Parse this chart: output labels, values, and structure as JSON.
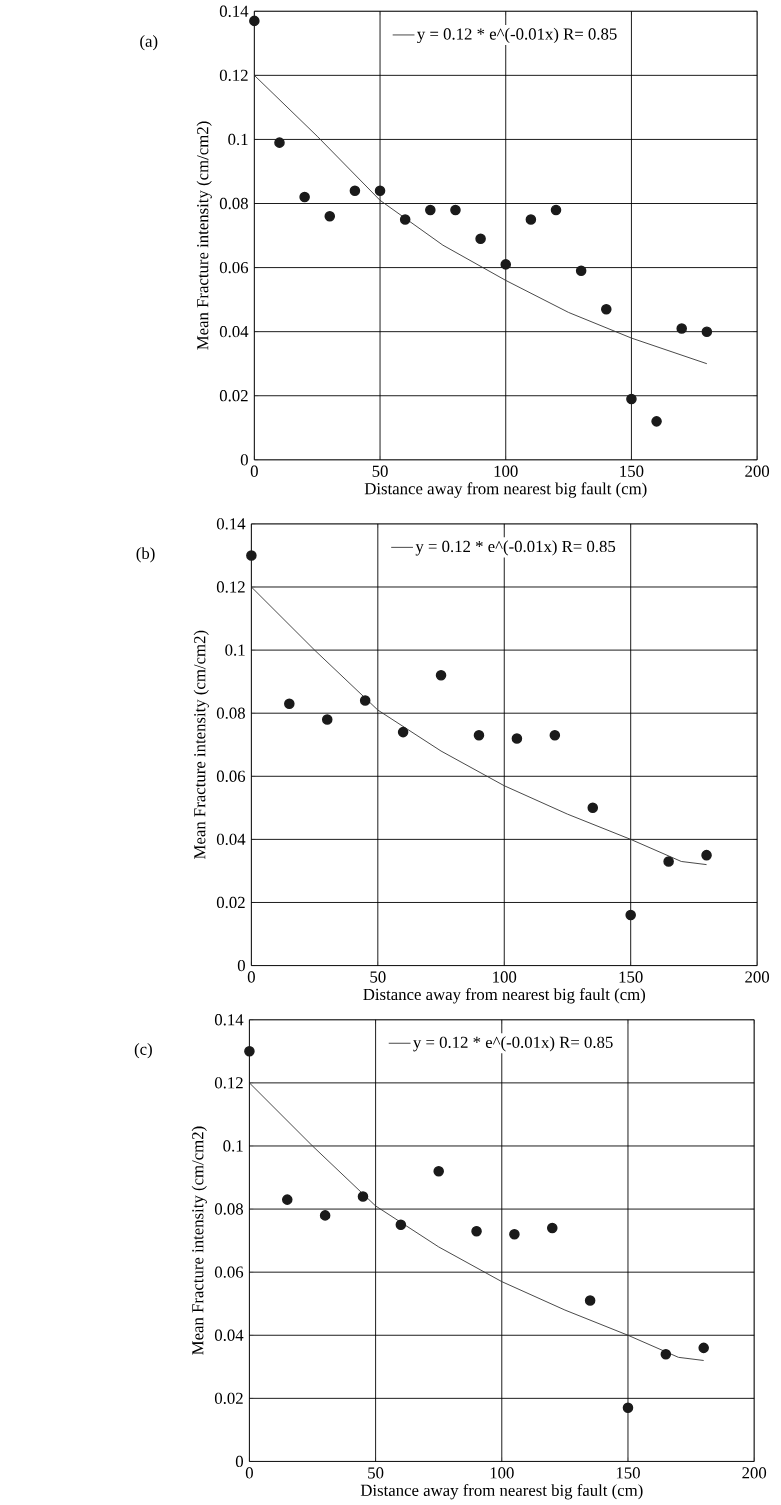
{
  "chart_data": [
    {
      "type": "scatter",
      "annotations": [
        "(a)"
      ],
      "xlabel": "Distance away from nearest big fault (cm)",
      "ylabel": "Mean Fracture intensity (cm/cm2)",
      "xlim": [
        0,
        200
      ],
      "xticks": [
        0,
        50,
        100,
        150,
        200
      ],
      "ylim": [
        0,
        0.14
      ],
      "yticks": [
        0,
        0.02,
        0.04,
        0.06,
        0.08,
        0.1,
        0.12,
        0.14
      ],
      "grid": true,
      "legend": "top",
      "series": [
        {
          "color": "#1a1a1a",
          "x": [
            0,
            10,
            20,
            30,
            40,
            50,
            60,
            70,
            80,
            90,
            100,
            110,
            120,
            130,
            140,
            150,
            160,
            170,
            180
          ],
          "values": [
            0.137,
            0.099,
            0.082,
            0.076,
            0.084,
            0.084,
            0.075,
            0.078,
            0.078,
            0.069,
            0.061,
            0.075,
            0.078,
            0.059,
            0.047,
            0.019,
            0.012,
            0.041,
            0.04
          ]
        },
        {
          "type": "line",
          "marker": "none",
          "name": "y = 0.12 * e^(-0.01x)   R= 0.85",
          "color": "#333333",
          "x": [
            0,
            25,
            50,
            75,
            100,
            125,
            150,
            180
          ],
          "values": [
            0.12,
            0.101,
            0.081,
            0.067,
            0.056,
            0.046,
            0.038,
            0.03
          ]
        }
      ]
    },
    {
      "type": "scatter",
      "annotations": [
        "(b)"
      ],
      "xlabel": "Distance away from nearest big fault (cm)",
      "ylabel": "Mean Fracture intensity (cm/cm2)",
      "xlim": [
        0,
        200
      ],
      "xticks": [
        0,
        50,
        100,
        150,
        200
      ],
      "ylim": [
        0,
        0.14
      ],
      "yticks": [
        0,
        0.02,
        0.04,
        0.06,
        0.08,
        0.1,
        0.12,
        0.14
      ],
      "grid": true,
      "legend": "top",
      "series": [
        {
          "color": "#1a1a1a",
          "x": [
            0,
            15,
            30,
            45,
            60,
            75,
            90,
            105,
            120,
            135,
            150,
            165,
            180
          ],
          "values": [
            0.13,
            0.083,
            0.078,
            0.084,
            0.074,
            0.092,
            0.073,
            0.072,
            0.073,
            0.05,
            0.016,
            0.033,
            0.035
          ]
        },
        {
          "type": "line",
          "marker": "none",
          "name": "y = 0.12 * e^(-0.01x)   R= 0.85",
          "color": "#333333",
          "x": [
            0,
            25,
            50,
            75,
            100,
            125,
            150,
            170,
            180
          ],
          "values": [
            0.12,
            0.1,
            0.081,
            0.068,
            0.057,
            0.048,
            0.04,
            0.033,
            0.032
          ]
        }
      ]
    },
    {
      "type": "scatter",
      "annotations": [
        "(c)"
      ],
      "xlabel": "Distance away from nearest big fault (cm)",
      "ylabel": "Mean Fracture intensity (cm/cm2)",
      "xlim": [
        0,
        200
      ],
      "xticks": [
        0,
        50,
        100,
        150,
        200
      ],
      "ylim": [
        0,
        0.14
      ],
      "yticks": [
        0,
        0.02,
        0.04,
        0.06,
        0.08,
        0.1,
        0.12,
        0.14
      ],
      "grid": true,
      "legend": "top",
      "series": [
        {
          "color": "#1a1a1a",
          "x": [
            0,
            15,
            30,
            45,
            60,
            75,
            90,
            105,
            120,
            135,
            150,
            165,
            180
          ],
          "values": [
            0.13,
            0.083,
            0.078,
            0.084,
            0.075,
            0.092,
            0.073,
            0.072,
            0.074,
            0.051,
            0.017,
            0.034,
            0.036
          ]
        },
        {
          "type": "line",
          "marker": "none",
          "name": "y = 0.12 * e^(-0.01x)   R= 0.85",
          "color": "#333333",
          "x": [
            0,
            25,
            50,
            75,
            100,
            125,
            150,
            170,
            180
          ],
          "values": [
            0.12,
            0.1,
            0.081,
            0.068,
            0.057,
            0.048,
            0.04,
            0.033,
            0.032
          ]
        }
      ]
    }
  ]
}
